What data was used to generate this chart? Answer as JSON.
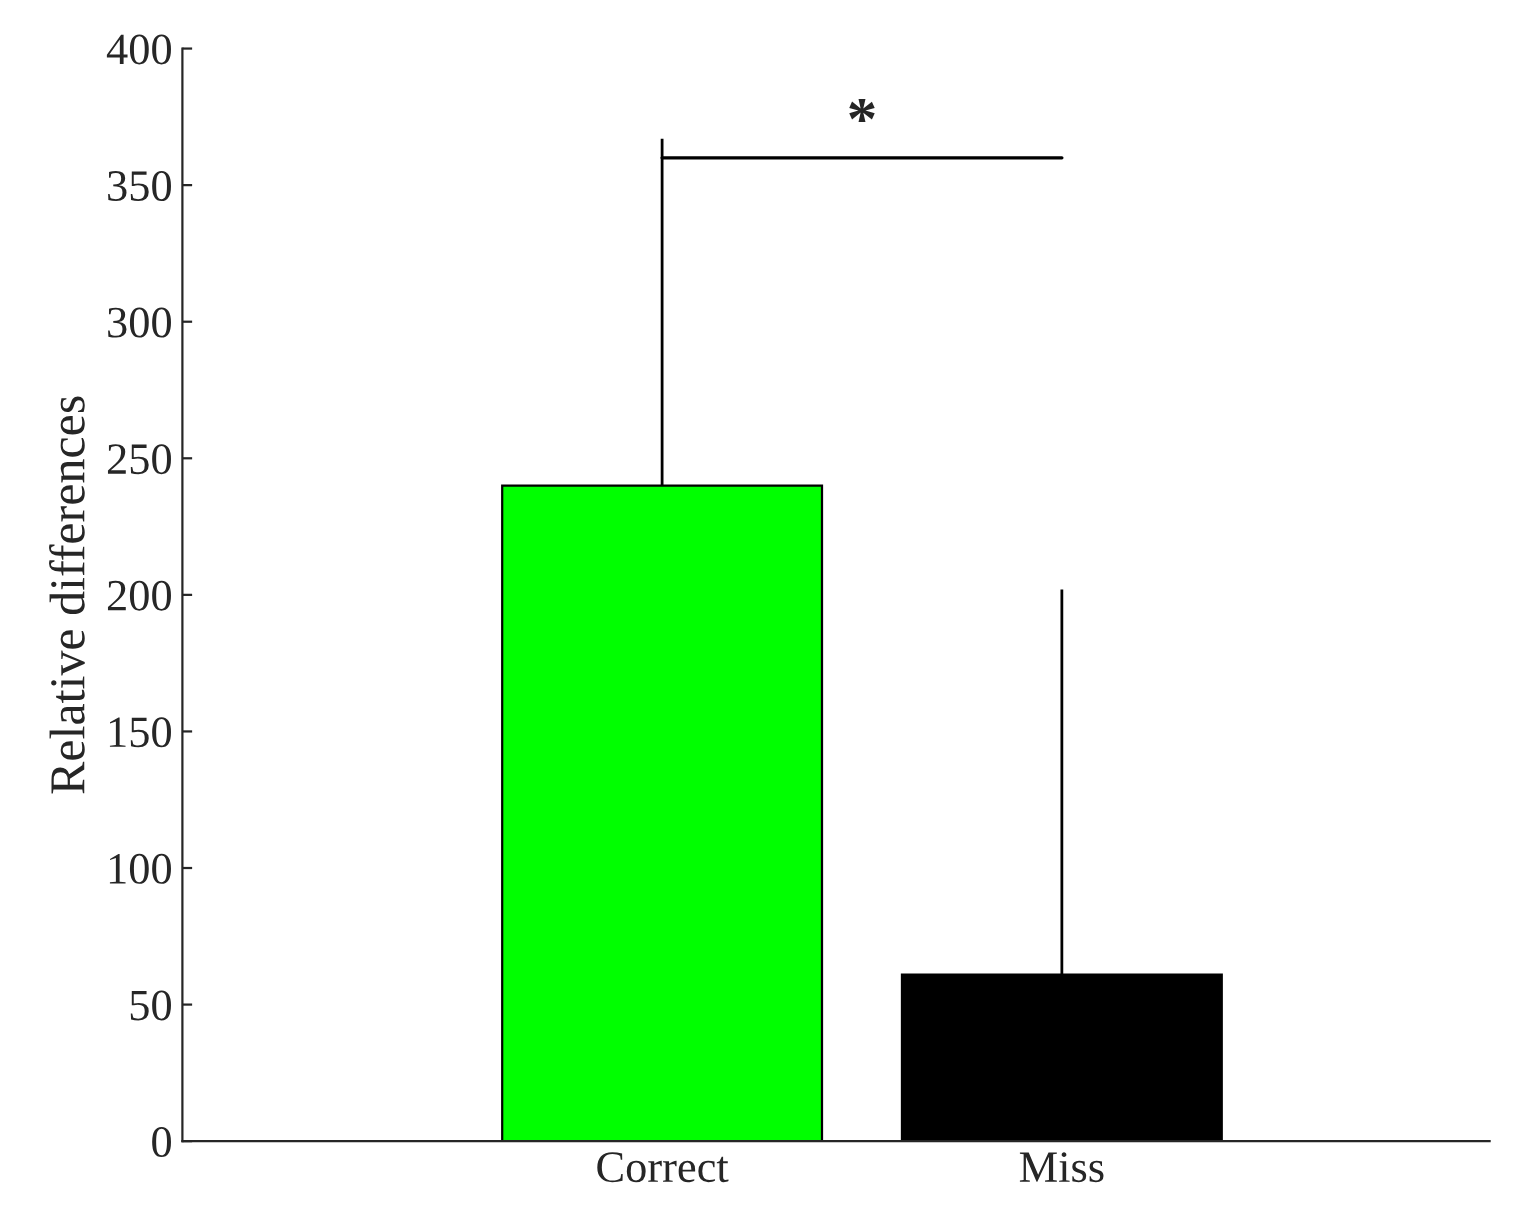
{
  "chart_data": {
    "type": "bar",
    "ylabel": "Relative differences",
    "categories": [
      "Correct",
      "Miss"
    ],
    "values": [
      240,
      61
    ],
    "colors": [
      "#00ff00",
      "#000000"
    ],
    "errors": [
      [
        240,
        367
      ],
      [
        61,
        202
      ]
    ],
    "ylim": [
      0,
      400
    ],
    "yticks": [
      0,
      50,
      100,
      150,
      200,
      250,
      300,
      350,
      400
    ],
    "grid": false,
    "legend": false,
    "annotations": [
      "*"
    ]
  }
}
